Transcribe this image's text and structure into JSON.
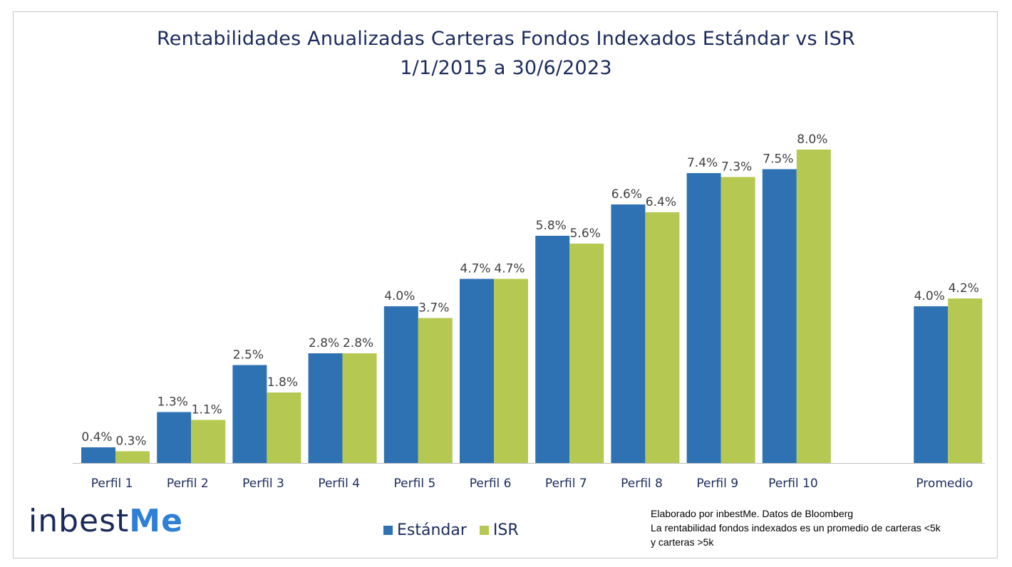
{
  "title_line1": "Rentabilidades Anualizadas Carteras Fondos Indexados Estándar vs ISR",
  "title_line2": "1/1/2015 a 30/6/2023",
  "colors": {
    "estandar": "#2f72b3",
    "isr": "#b5c952",
    "text": "#1b2a5c",
    "accent": "#2e7fd6"
  },
  "logo": {
    "main": "inbest",
    "accent": "Me"
  },
  "note": {
    "line1": "Elaborado por inbestMe. Datos de Bloomberg",
    "line2": "La rentabilidad  fondos indexados es un promedio de carteras <5k",
    "line3": "y carteras >5k"
  },
  "legend": [
    {
      "label": "Estándar"
    },
    {
      "label": "ISR"
    }
  ],
  "chart_data": {
    "type": "bar",
    "title": "Rentabilidades Anualizadas Carteras Fondos Indexados Estándar vs ISR 1/1/2015 a 30/6/2023",
    "categories": [
      "Perfil 1",
      "Perfil 2",
      "Perfil 3",
      "Perfil 4",
      "Perfil 5",
      "Perfil 6",
      "Perfil 7",
      "Perfil 8",
      "Perfil 9",
      "Perfil 10",
      "",
      "Promedio"
    ],
    "series": [
      {
        "name": "Estándar",
        "values": [
          0.4,
          1.3,
          2.5,
          2.8,
          4.0,
          4.7,
          5.8,
          6.6,
          7.4,
          7.5,
          null,
          4.0
        ],
        "labels": [
          "0.4%",
          "1.3%",
          "2.5%",
          "2.8%",
          "4.0%",
          "4.7%",
          "5.8%",
          "6.6%",
          "7.4%",
          "7.5%",
          "",
          "4.0%"
        ]
      },
      {
        "name": "ISR",
        "values": [
          0.3,
          1.1,
          1.8,
          2.8,
          3.7,
          4.7,
          5.6,
          6.4,
          7.3,
          8.0,
          null,
          4.2
        ],
        "labels": [
          "0.3%",
          "1.1%",
          "1.8%",
          "2.8%",
          "3.7%",
          "4.7%",
          "5.6%",
          "6.4%",
          "7.3%",
          "8.0%",
          "",
          "4.2%"
        ]
      }
    ],
    "ylim": [
      0,
      8.0
    ],
    "grid": false,
    "legend_position": "bottom"
  }
}
